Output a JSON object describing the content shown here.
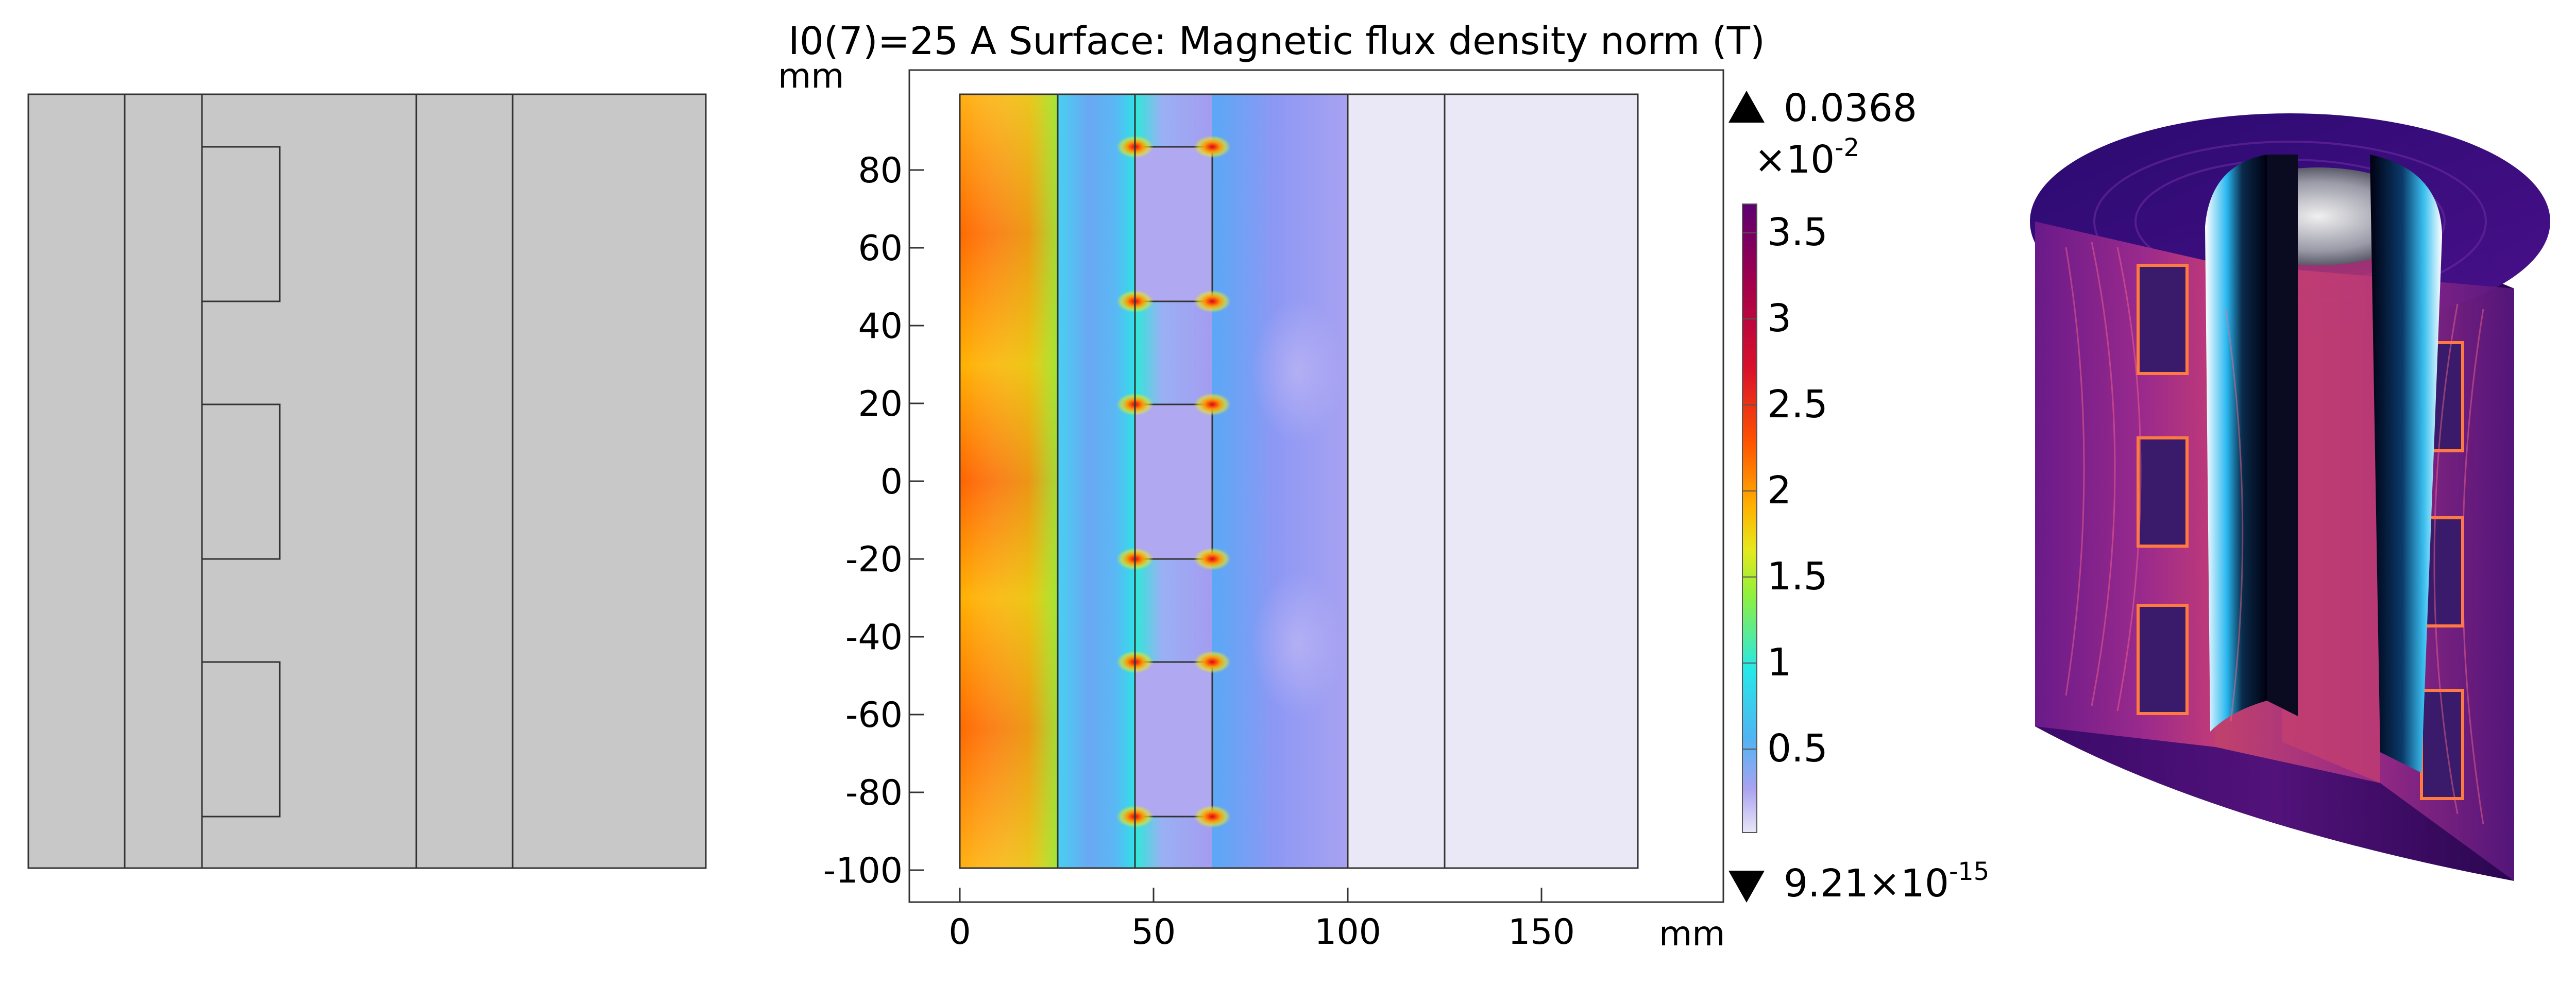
{
  "plot": {
    "title": "I0(7)=25 A Surface: Magnetic flux density norm (T)",
    "x_unit": "mm",
    "y_unit": "mm"
  },
  "colorbar": {
    "max_label": "0.0368",
    "multiplier_base": "×10",
    "multiplier_exp": "-2",
    "min_label_base": "9.21×10",
    "min_label_exp": "-15",
    "ticks": [
      {
        "value": 3.5,
        "label": "3.5"
      },
      {
        "value": 3.0,
        "label": "3"
      },
      {
        "value": 2.5,
        "label": "2.5"
      },
      {
        "value": 2.0,
        "label": "2"
      },
      {
        "value": 1.5,
        "label": "1.5"
      },
      {
        "value": 1.0,
        "label": "1"
      },
      {
        "value": 0.5,
        "label": "0.5"
      }
    ],
    "range": [
      0,
      3.68
    ],
    "colors": [
      "#e8e6f7",
      "#a9a3f0",
      "#50b4f2",
      "#26e8e8",
      "#92f03a",
      "#e6e81e",
      "#ffb000",
      "#ff5400",
      "#d8102a",
      "#a0004e",
      "#5c0070"
    ]
  },
  "chart_data": {
    "type": "heatmap",
    "title": "I0(7)=25 A Surface: Magnetic flux density norm (T)",
    "xlabel": "mm",
    "ylabel": "mm",
    "xlim": [
      -10,
      200
    ],
    "ylim": [
      -108,
      107
    ],
    "x_ticks": [
      0,
      50,
      100,
      150
    ],
    "y_ticks": [
      80,
      60,
      40,
      20,
      0,
      -20,
      -40,
      -60,
      -80,
      -100
    ],
    "x_tick_labels": [
      "0",
      "50",
      "100",
      "150"
    ],
    "y_tick_labels": [
      "80",
      "60",
      "40",
      "20",
      "0",
      "-20",
      "-40",
      "-60",
      "-80",
      "-100"
    ],
    "domain_boundaries_x": [
      0,
      25,
      45,
      65,
      100,
      125,
      175
    ],
    "domain_y": [
      -100,
      100
    ],
    "coils": [
      {
        "x": [
          45,
          65
        ],
        "y": [
          47,
          87
        ]
      },
      {
        "x": [
          45,
          65
        ],
        "y": [
          -20,
          20
        ]
      },
      {
        "x": [
          45,
          65
        ],
        "y": [
          -87,
          -47
        ]
      }
    ],
    "colorbar_max": 0.0368,
    "colorbar_min": 9.21e-15
  }
}
